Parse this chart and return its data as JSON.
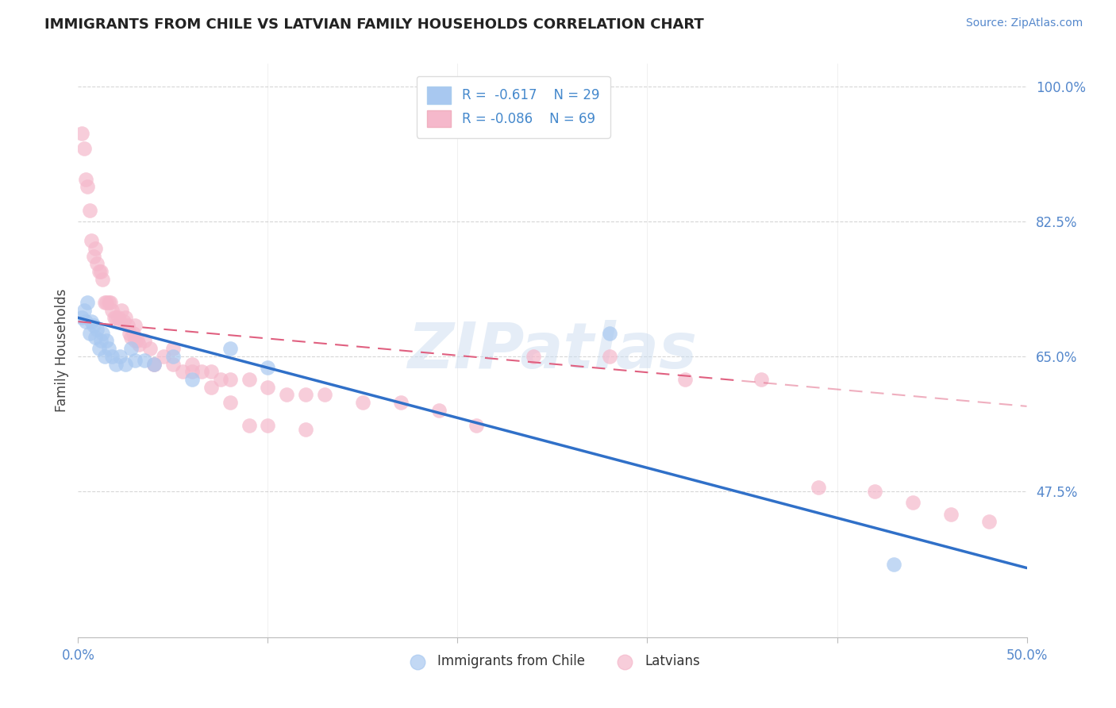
{
  "title": "IMMIGRANTS FROM CHILE VS LATVIAN FAMILY HOUSEHOLDS CORRELATION CHART",
  "source": "Source: ZipAtlas.com",
  "ylabel": "Family Households",
  "xlim": [
    0.0,
    0.5
  ],
  "ylim": [
    0.285,
    1.03
  ],
  "ytick_right": [
    0.475,
    0.65,
    0.825,
    1.0
  ],
  "ytick_right_labels": [
    "47.5%",
    "65.0%",
    "82.5%",
    "100.0%"
  ],
  "grid_color": "#cccccc",
  "background_color": "#ffffff",
  "chile_R": "-0.617",
  "chile_N": "29",
  "latvian_R": "-0.086",
  "latvian_N": "69",
  "chile_color": "#a8c8f0",
  "latvian_color": "#f5b8cb",
  "chile_line_color": "#3070c8",
  "latvian_line_color": "#e06080",
  "chile_line_x0": 0.0,
  "chile_line_y0": 0.7,
  "chile_line_x1": 0.5,
  "chile_line_y1": 0.375,
  "latvian_line_x0": 0.0,
  "latvian_line_y0": 0.695,
  "latvian_line_x1": 0.5,
  "latvian_line_y1": 0.585,
  "chile_scatter_x": [
    0.002,
    0.003,
    0.004,
    0.005,
    0.006,
    0.007,
    0.008,
    0.009,
    0.01,
    0.011,
    0.012,
    0.013,
    0.014,
    0.015,
    0.016,
    0.018,
    0.02,
    0.022,
    0.025,
    0.028,
    0.03,
    0.035,
    0.04,
    0.05,
    0.06,
    0.08,
    0.1,
    0.28,
    0.43
  ],
  "chile_scatter_y": [
    0.7,
    0.71,
    0.695,
    0.72,
    0.68,
    0.695,
    0.69,
    0.675,
    0.685,
    0.66,
    0.67,
    0.68,
    0.65,
    0.67,
    0.66,
    0.65,
    0.64,
    0.65,
    0.64,
    0.66,
    0.645,
    0.645,
    0.64,
    0.65,
    0.62,
    0.66,
    0.635,
    0.68,
    0.38
  ],
  "latvian_scatter_x": [
    0.002,
    0.003,
    0.004,
    0.005,
    0.006,
    0.007,
    0.008,
    0.009,
    0.01,
    0.011,
    0.012,
    0.013,
    0.014,
    0.015,
    0.016,
    0.017,
    0.018,
    0.019,
    0.02,
    0.021,
    0.022,
    0.023,
    0.024,
    0.025,
    0.026,
    0.027,
    0.028,
    0.029,
    0.03,
    0.031,
    0.032,
    0.035,
    0.038,
    0.04,
    0.045,
    0.05,
    0.055,
    0.06,
    0.065,
    0.07,
    0.075,
    0.08,
    0.09,
    0.1,
    0.11,
    0.12,
    0.13,
    0.15,
    0.17,
    0.19,
    0.21,
    0.24,
    0.28,
    0.32,
    0.36,
    0.39,
    0.42,
    0.44,
    0.46,
    0.48,
    0.03,
    0.04,
    0.05,
    0.06,
    0.07,
    0.08,
    0.09,
    0.1,
    0.12
  ],
  "latvian_scatter_y": [
    0.94,
    0.92,
    0.88,
    0.87,
    0.84,
    0.8,
    0.78,
    0.79,
    0.77,
    0.76,
    0.76,
    0.75,
    0.72,
    0.72,
    0.72,
    0.72,
    0.71,
    0.7,
    0.7,
    0.7,
    0.695,
    0.71,
    0.695,
    0.7,
    0.69,
    0.68,
    0.675,
    0.68,
    0.69,
    0.67,
    0.665,
    0.67,
    0.66,
    0.64,
    0.65,
    0.64,
    0.63,
    0.64,
    0.63,
    0.63,
    0.62,
    0.62,
    0.62,
    0.61,
    0.6,
    0.6,
    0.6,
    0.59,
    0.59,
    0.58,
    0.56,
    0.65,
    0.65,
    0.62,
    0.62,
    0.48,
    0.475,
    0.46,
    0.445,
    0.435,
    0.67,
    0.64,
    0.66,
    0.63,
    0.61,
    0.59,
    0.56,
    0.56,
    0.555
  ],
  "watermark_text": "ZIPatlas",
  "watermark_color": "#ccddf0",
  "watermark_alpha": 0.5
}
